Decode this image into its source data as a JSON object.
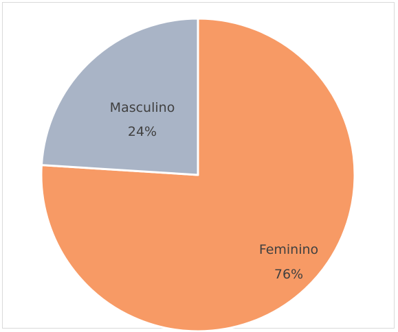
{
  "chart_data": {
    "type": "pie",
    "title": "",
    "slices": [
      {
        "label": "Feminino",
        "value": 76,
        "percent_label": "76%",
        "color": "#f79a65"
      },
      {
        "label": "Masculino",
        "value": 24,
        "percent_label": "24%",
        "color": "#a9b4c6"
      }
    ],
    "start_angle_deg": 0,
    "direction": "clockwise",
    "legend": "none",
    "slice_border_color": "#ffffff"
  }
}
